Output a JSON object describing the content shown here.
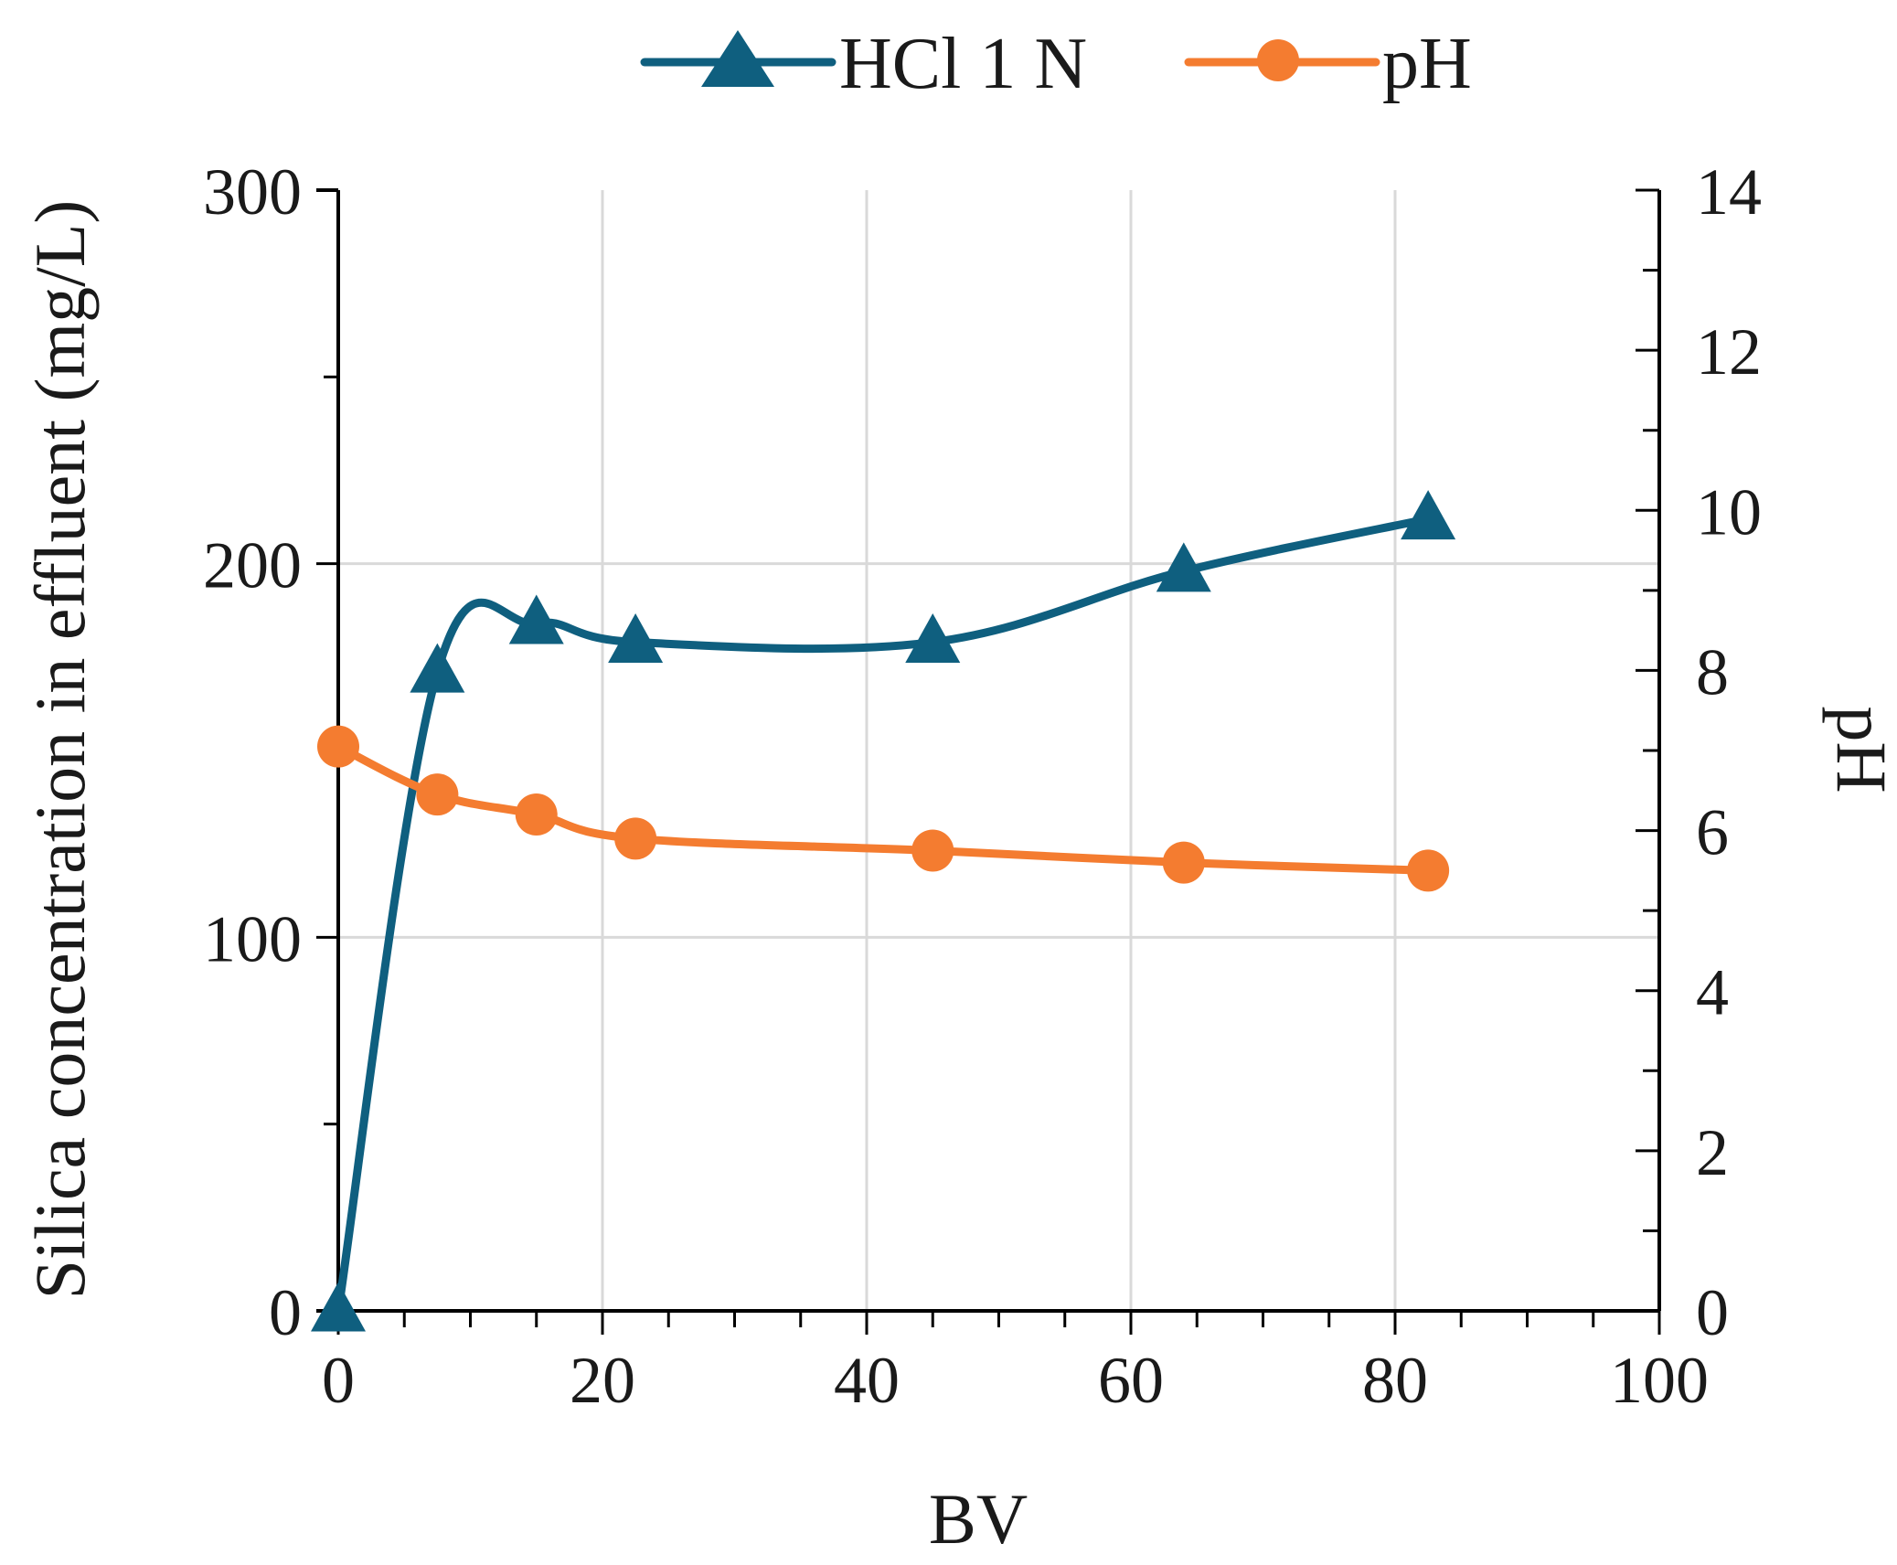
{
  "chart_data": {
    "type": "line",
    "title": "",
    "xlabel": "BV",
    "ylabel": "Silica concentration in effluent (mg/L)",
    "y2label": "pH",
    "xlim": [
      0,
      100
    ],
    "ylim": [
      0,
      300
    ],
    "y2lim": [
      0,
      14
    ],
    "x_ticks": [
      "0",
      "20",
      "40",
      "60",
      "80",
      "100"
    ],
    "y_ticks": [
      "0",
      "100",
      "200",
      "300"
    ],
    "y2_ticks": [
      "0",
      "2",
      "4",
      "6",
      "8",
      "10",
      "12",
      "14"
    ],
    "grid": true,
    "legend_position": "top",
    "series": [
      {
        "name": "HCl 1 N",
        "axis": "left",
        "marker": "triangle",
        "color": "#0f5f7f",
        "x": [
          0,
          7.5,
          15,
          22.5,
          45,
          64,
          82.5
        ],
        "y": [
          0,
          171,
          184,
          179,
          179,
          198,
          212
        ]
      },
      {
        "name": "pH",
        "axis": "right",
        "marker": "circle",
        "color": "#f47c30",
        "x": [
          0,
          7.5,
          15,
          22.5,
          45,
          64,
          82.5
        ],
        "y": [
          7.05,
          6.45,
          6.2,
          5.9,
          5.75,
          5.6,
          5.5
        ]
      }
    ]
  }
}
